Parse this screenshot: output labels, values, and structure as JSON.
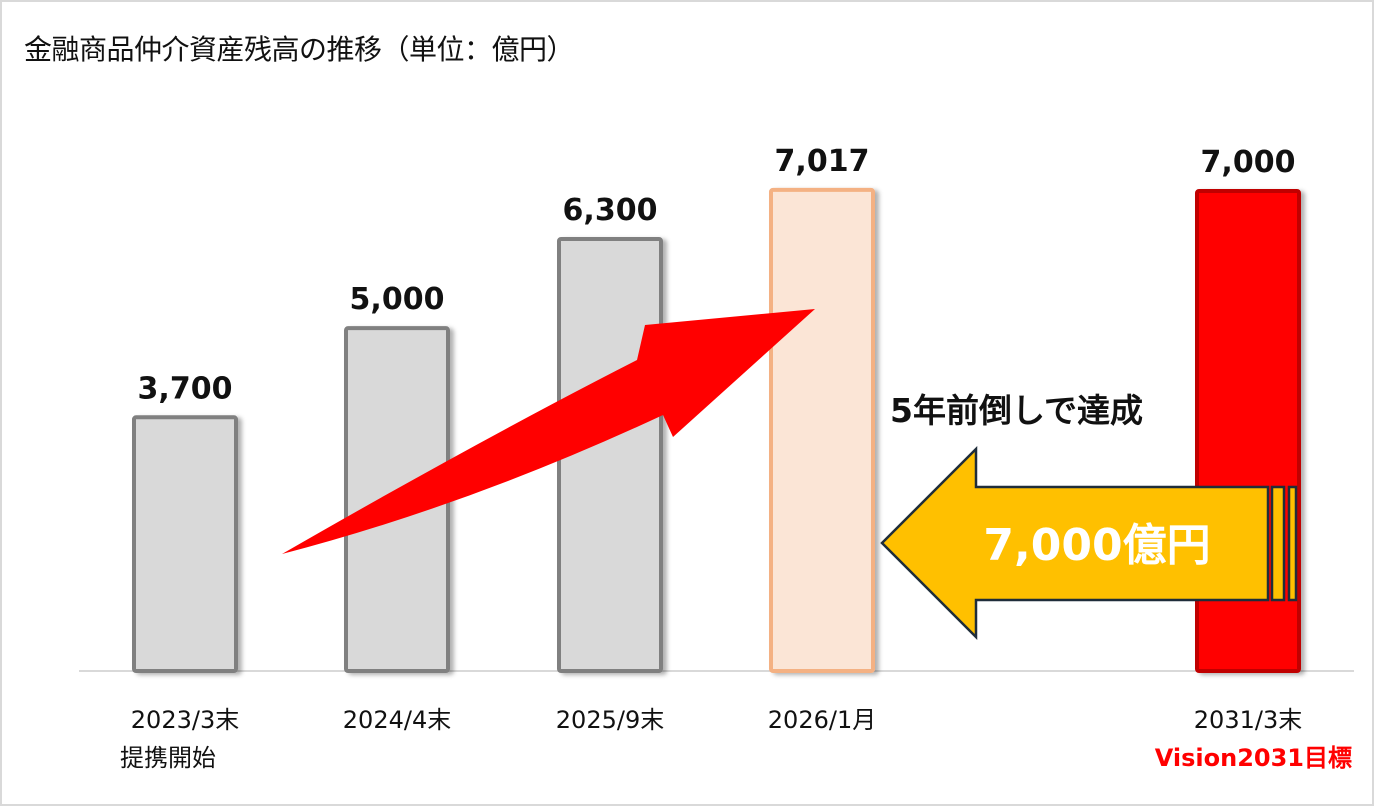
{
  "title": "金融商品仲介資産残高の推移（単位：億円）",
  "chart_data": {
    "type": "bar",
    "title": "金融商品仲介資産残高の推移（単位：億円）",
    "unit": "億円",
    "categories": [
      "2023/3末",
      "2024/4末",
      "2025/9末",
      "2026/1月",
      "2031/3末"
    ],
    "category_sublabels": [
      "提携開始",
      "",
      "",
      "",
      "Vision2031目標"
    ],
    "values": [
      3700,
      5000,
      6300,
      7017,
      7000
    ],
    "value_labels": [
      "3,700",
      "5,000",
      "6,300",
      "7,017",
      "7,000"
    ],
    "bar_styles": [
      {
        "fill": "#d9d9d9",
        "stroke": "#808080"
      },
      {
        "fill": "#d9d9d9",
        "stroke": "#808080"
      },
      {
        "fill": "#d9d9d9",
        "stroke": "#808080"
      },
      {
        "fill": "#fbe5d6",
        "stroke": "#f4b183"
      },
      {
        "fill": "#ff0000",
        "stroke": "#c00000"
      }
    ],
    "xlabel": "",
    "ylabel": "",
    "ylim": [
      0,
      9000
    ],
    "grid": false,
    "legend": null,
    "annotations": [
      {
        "type": "growth-arrow",
        "color": "#ff0000",
        "from": "2023/3末",
        "to": "2026/1月"
      },
      {
        "type": "text",
        "text": "5年前倒しで達成"
      },
      {
        "type": "block-arrow-left",
        "text": "7,000億円",
        "color": "#ffc000",
        "from": "2031/3末",
        "to": "2026/1月"
      }
    ]
  },
  "colors": {
    "gray_bar": "#d9d9d9",
    "gray_border": "#808080",
    "peach_bar": "#fbe5d6",
    "peach_border": "#f4b183",
    "target_bar": "#ff0000",
    "target_border": "#c00000",
    "growth_arrow": "#ff0000",
    "target_arrow": "#ffc000",
    "target_arrow_outline": "#1f2d3a",
    "vision_text": "#ff0000"
  }
}
